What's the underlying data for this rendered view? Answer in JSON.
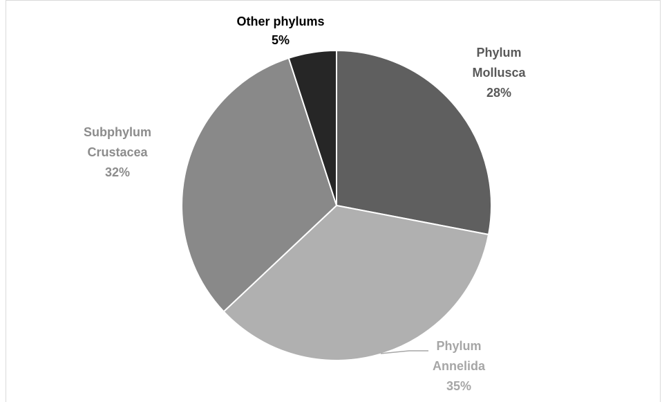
{
  "chart_data": {
    "type": "pie",
    "title": "",
    "slices": [
      {
        "label_lines": [
          "Phylum",
          "Mollusca"
        ],
        "value": 28,
        "value_label": "28%",
        "color": "#5f5f5f",
        "label_color": "#595959"
      },
      {
        "label_lines": [
          "Phylum",
          "Annelida"
        ],
        "value": 35,
        "value_label": "35%",
        "color": "#b0b0b0",
        "label_color": "#a6a6a6"
      },
      {
        "label_lines": [
          "Subphylum",
          "Crustacea"
        ],
        "value": 32,
        "value_label": "32%",
        "color": "#898989",
        "label_color": "#8c8c8c"
      },
      {
        "label_lines": [
          "Other phylums"
        ],
        "value": 5,
        "value_label": "5%",
        "color": "#262626",
        "label_color": "#000000"
      }
    ],
    "start_angle": "12 o'clock",
    "direction": "clockwise",
    "legend": "none"
  }
}
